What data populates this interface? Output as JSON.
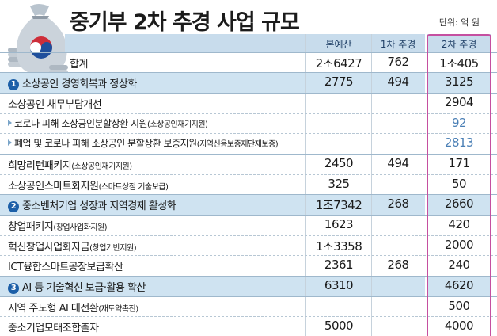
{
  "title": "중기부 2차 추경 사업 규모",
  "unit": "단위: 억 원",
  "icon": "money-bag-icon",
  "headers": [
    "본예산",
    "1차 추경",
    "2차 추경"
  ],
  "rows": [
    {
      "label": "합계",
      "sub": "",
      "values": [
        "2조6427",
        "762",
        "1조405"
      ],
      "type": "total",
      "marker": "",
      "highlight3": false
    },
    {
      "label": "소상공인 경영회복과 정상화",
      "sub": "",
      "values": [
        "2775",
        "494",
        "3125"
      ],
      "type": "section",
      "marker": "1",
      "highlight3": false
    },
    {
      "label": "소상공인 채무부담개선",
      "sub": "",
      "values": [
        "",
        "",
        "2904"
      ],
      "type": "item",
      "marker": "",
      "highlight3": false
    },
    {
      "label": "코로나 피해 소상공인분할상환 지원",
      "sub": "(소상공인재기지원)",
      "values": [
        "",
        "",
        "92"
      ],
      "type": "subitem",
      "marker": "",
      "highlight3": true
    },
    {
      "label": "폐업 및 코로나 피해 소상공인 분할상환 보증지원",
      "sub": "(지역신용보증재단재보증)",
      "values": [
        "",
        "",
        "2813"
      ],
      "type": "subitem",
      "marker": "",
      "highlight3": true
    },
    {
      "label": "희망리턴패키지",
      "sub": "(소상공인재기지원)",
      "values": [
        "2450",
        "494",
        "171"
      ],
      "type": "item",
      "marker": "",
      "highlight3": false
    },
    {
      "label": "소상공인스마트화지원",
      "sub": "(스마트상점 기술보급)",
      "values": [
        "325",
        "",
        "50"
      ],
      "type": "item",
      "marker": "",
      "highlight3": false
    },
    {
      "label": "중소벤처기업 성장과 지역경제 활성화",
      "sub": "",
      "values": [
        "1조7342",
        "268",
        "2660"
      ],
      "type": "section",
      "marker": "2",
      "highlight3": false
    },
    {
      "label": "창업패키지",
      "sub": "(창업사업화지원)",
      "values": [
        "1623",
        "",
        "420"
      ],
      "type": "item",
      "marker": "",
      "highlight3": false
    },
    {
      "label": "혁신창업사업화자금",
      "sub": "(창업기반지원)",
      "values": [
        "1조3358",
        "",
        "2000"
      ],
      "type": "item",
      "marker": "",
      "highlight3": false
    },
    {
      "label": "ICT융합스마트공장보급확산",
      "sub": "",
      "values": [
        "2361",
        "268",
        "240"
      ],
      "type": "item",
      "marker": "",
      "highlight3": false
    },
    {
      "label": "AI 등 기술혁신 보급·활용 확산",
      "sub": "",
      "values": [
        "6310",
        "",
        "4620"
      ],
      "type": "section",
      "marker": "3",
      "highlight3": false
    },
    {
      "label": "지역 주도형 AI 대전환",
      "sub": "(재도약촉진)",
      "values": [
        "",
        "",
        "500"
      ],
      "type": "item",
      "marker": "",
      "highlight3": false
    },
    {
      "label": "중소기업모태조합출자",
      "sub": "",
      "values": [
        "5000",
        "",
        "4000"
      ],
      "type": "item",
      "marker": "",
      "highlight3": false
    }
  ],
  "colors": {
    "section_bg": "#cfe3f1",
    "header_bg": "#c8dcec",
    "badge": "#1c5fa8",
    "highlight_box": "#c54fa0",
    "sub_value": "#4a7fb5"
  }
}
